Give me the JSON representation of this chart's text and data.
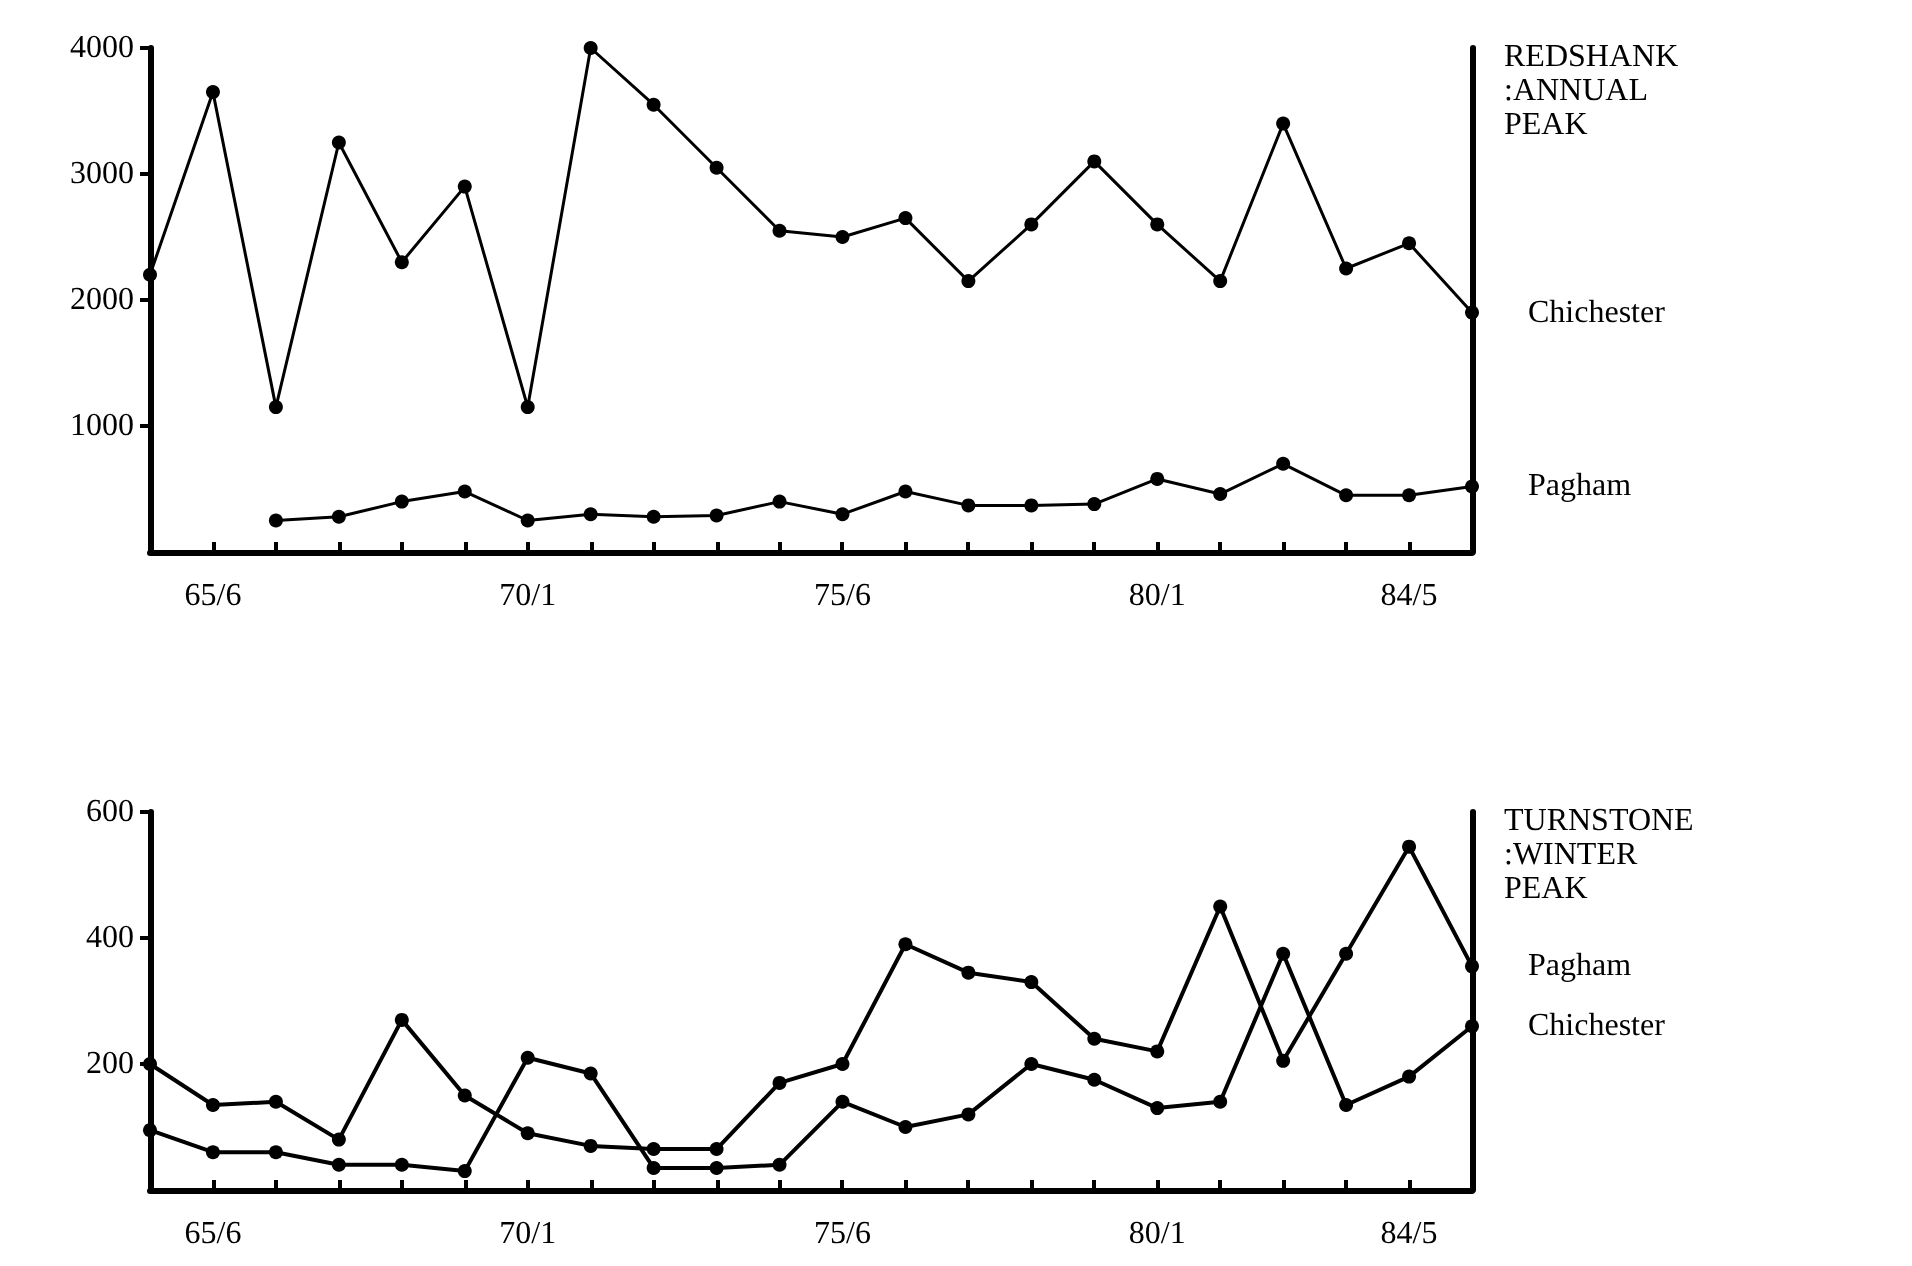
{
  "chart_data": [
    {
      "type": "line",
      "annotations": [
        "REDSHANK :ANNUAL PEAK"
      ],
      "categories": [
        null,
        "65/6",
        null,
        null,
        null,
        null,
        "70/1",
        null,
        null,
        null,
        null,
        "75/6",
        null,
        null,
        null,
        null,
        "80/1",
        null,
        null,
        null,
        "84/5",
        null
      ],
      "ylim": [
        0,
        4000
      ],
      "yticks": [
        1000,
        2000,
        3000,
        4000
      ],
      "grid": false,
      "legend": false,
      "marker": "circle",
      "line_style": "solid",
      "series": [
        {
          "name": "Chichester",
          "color": "#000000",
          "values": [
            2200,
            3650,
            1150,
            3250,
            2300,
            2900,
            1150,
            4000,
            3550,
            3050,
            2550,
            2500,
            2650,
            2150,
            2600,
            3100,
            2600,
            2150,
            3400,
            2250,
            2450,
            1900
          ]
        },
        {
          "name": "Pagham",
          "color": "#000000",
          "values": [
            null,
            null,
            250,
            280,
            400,
            480,
            250,
            300,
            280,
            290,
            400,
            300,
            480,
            370,
            370,
            380,
            580,
            460,
            700,
            450,
            450,
            520
          ]
        }
      ]
    },
    {
      "type": "line",
      "annotations": [
        "TURNSTONE :WINTER PEAK"
      ],
      "categories": [
        null,
        "65/6",
        null,
        null,
        null,
        null,
        "70/1",
        null,
        null,
        null,
        null,
        "75/6",
        null,
        null,
        null,
        null,
        "80/1",
        null,
        null,
        null,
        "84/5",
        null
      ],
      "ylim": [
        0,
        600
      ],
      "yticks": [
        200,
        400,
        600
      ],
      "grid": false,
      "legend": false,
      "marker": "circle",
      "line_style": "solid",
      "series": [
        {
          "name": "Pagham",
          "color": "#000000",
          "values": [
            200,
            135,
            140,
            80,
            270,
            150,
            90,
            70,
            65,
            65,
            170,
            200,
            390,
            345,
            330,
            240,
            220,
            450,
            205,
            375,
            545,
            355
          ]
        },
        {
          "name": "Chichester",
          "color": "#000000",
          "values": [
            95,
            60,
            60,
            40,
            40,
            30,
            210,
            185,
            35,
            35,
            40,
            140,
            100,
            120,
            200,
            175,
            130,
            140,
            375,
            135,
            180,
            260
          ]
        }
      ]
    }
  ]
}
